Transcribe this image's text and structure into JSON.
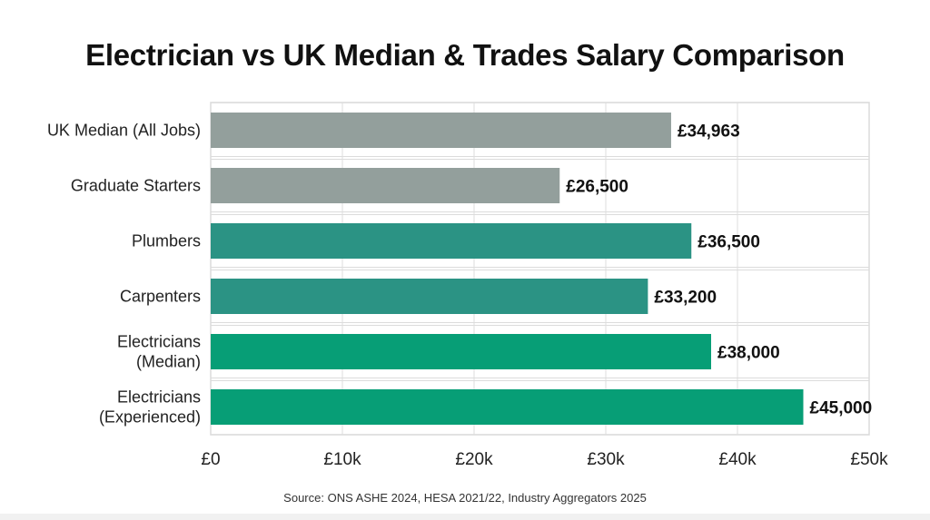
{
  "chart_data": {
    "type": "bar",
    "orientation": "horizontal",
    "title": "Electrician vs UK Median & Trades Salary Comparison",
    "categories": [
      "UK Median (All Jobs)",
      "Graduate Starters",
      "Plumbers",
      "Carpenters",
      "Electricians (Median)",
      "Electricians (Experienced)"
    ],
    "category_lines": [
      [
        "UK Median (All Jobs)"
      ],
      [
        "Graduate Starters"
      ],
      [
        "Plumbers"
      ],
      [
        "Carpenters"
      ],
      [
        "Electricians",
        "(Median)"
      ],
      [
        "Electricians",
        "(Experienced)"
      ]
    ],
    "values": [
      34963,
      26500,
      36500,
      33200,
      38000,
      45000
    ],
    "data_labels": [
      "£34,963",
      "£26,500",
      "£36,500",
      "£33,200",
      "£38,000",
      "£45,000"
    ],
    "colors": [
      "#939f9c",
      "#939f9c",
      "#2b9384",
      "#2b9384",
      "#079e76",
      "#079e76"
    ],
    "xlim": [
      0,
      50000
    ],
    "xticks": [
      0,
      10000,
      20000,
      30000,
      40000,
      50000
    ],
    "xtick_labels": [
      "£0",
      "£10k",
      "£20k",
      "£30k",
      "£40k",
      "£50k"
    ],
    "xlabel": "",
    "ylabel": "",
    "grid": true,
    "source": "Source: ONS ASHE 2024, HESA 2021/22, Industry Aggregators 2025"
  }
}
